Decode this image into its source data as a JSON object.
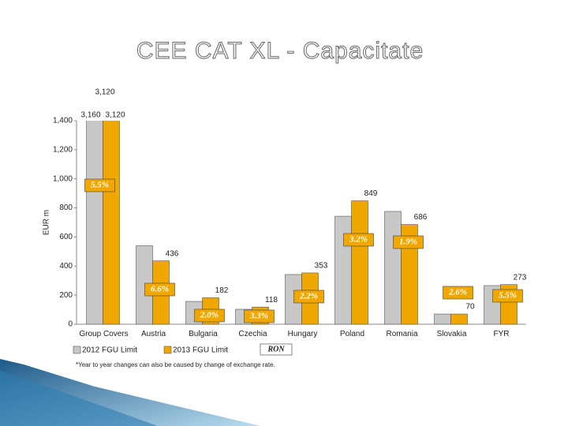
{
  "chart_data": {
    "type": "bar",
    "title": "CEE CAT XL - Capacitate",
    "y_label": "EUR m",
    "categories": [
      "Group Covers",
      "Austria",
      "Bulgaria",
      "Czechia",
      "Hungary",
      "Poland",
      "Romania",
      "Slovakia",
      "FYR"
    ],
    "series": [
      {
        "name": "2012 FGU Limit",
        "color": "#c8c8c8",
        "values": [
          3160,
          540,
          157,
          103,
          342,
          743,
          776,
          70,
          266
        ],
        "value_labels": [
          "3,160",
          null,
          null,
          null,
          null,
          null,
          null,
          null,
          null
        ]
      },
      {
        "name": "2013 FGU Limit",
        "color": "#f0a800",
        "values": [
          3120,
          436,
          182,
          118,
          353,
          849,
          686,
          70,
          273
        ],
        "value_labels": [
          "3,120",
          "436",
          "182",
          "118",
          "353",
          "849",
          "686",
          "70",
          "273"
        ]
      }
    ],
    "change_labels": [
      "5.5%",
      "6.6%",
      "2.0%",
      "3.3%",
      "2.2%",
      "3.2%",
      "1.9%",
      "2.6%",
      "5.5%"
    ],
    "annotations": [
      "3,120",
      "RON"
    ],
    "footnote": "*Year to year changes can also be caused by change of exchange rate.",
    "ylim": [
      0,
      1400
    ],
    "yticks": [
      0,
      200,
      400,
      600,
      800,
      {
        "value": 1000,
        "label": "1,000"
      },
      {
        "value": 1200,
        "label": "1,200"
      },
      {
        "value": 1400,
        "label": "1,400"
      }
    ],
    "grid": false,
    "legend": "bottom-left"
  }
}
